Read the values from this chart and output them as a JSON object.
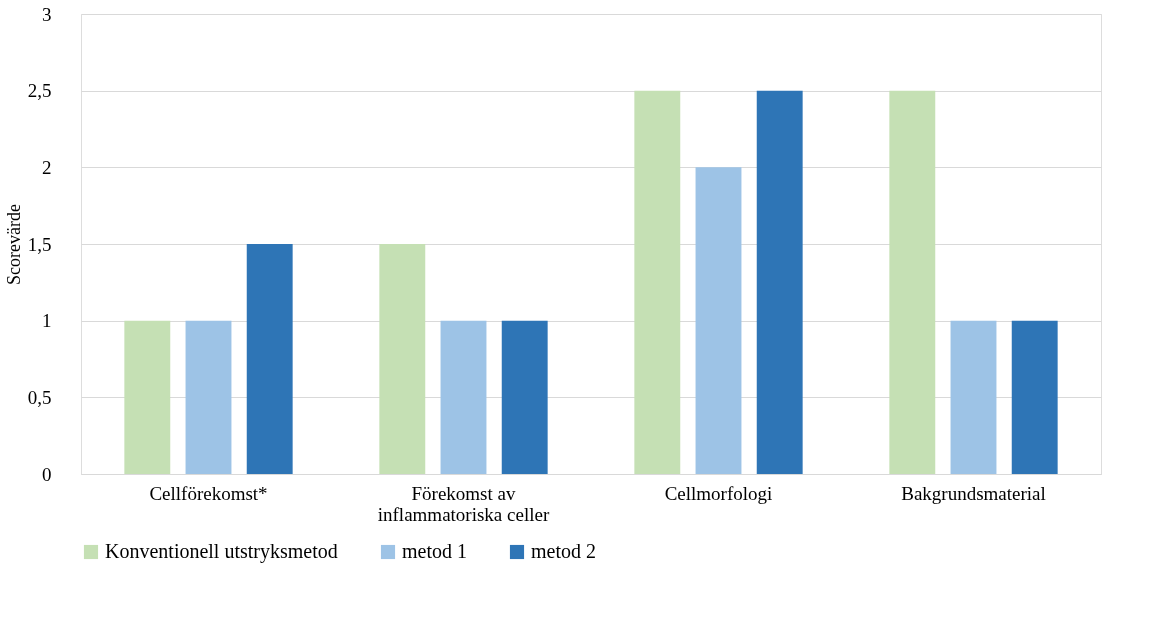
{
  "chart_data": {
    "type": "bar",
    "ylabel": "Scorevärde",
    "categories": [
      "Cellförekomst*",
      "Förekomst av\ninflammatoriska celler",
      "Cellmorfologi",
      "Bakgrundsmaterial"
    ],
    "series": [
      {
        "name": "Konventionell utstryksmetod",
        "color": "#c5e0b4",
        "values": [
          1,
          1.5,
          2.5,
          2.5
        ]
      },
      {
        "name": "metod 1",
        "color": "#9dc3e6",
        "values": [
          1,
          1,
          2,
          1
        ]
      },
      {
        "name": "metod 2",
        "color": "#2e75b6",
        "values": [
          1.5,
          1,
          2.5,
          1
        ]
      }
    ],
    "ylim": [
      0,
      3
    ],
    "yticks": [
      0,
      {
        "value": 0.5,
        "label": "0,5"
      },
      1,
      {
        "value": 1.5,
        "label": "1,5"
      },
      2,
      {
        "value": 2.5,
        "label": "2,5"
      },
      3
    ],
    "grid": "y",
    "legend": "bottom"
  }
}
